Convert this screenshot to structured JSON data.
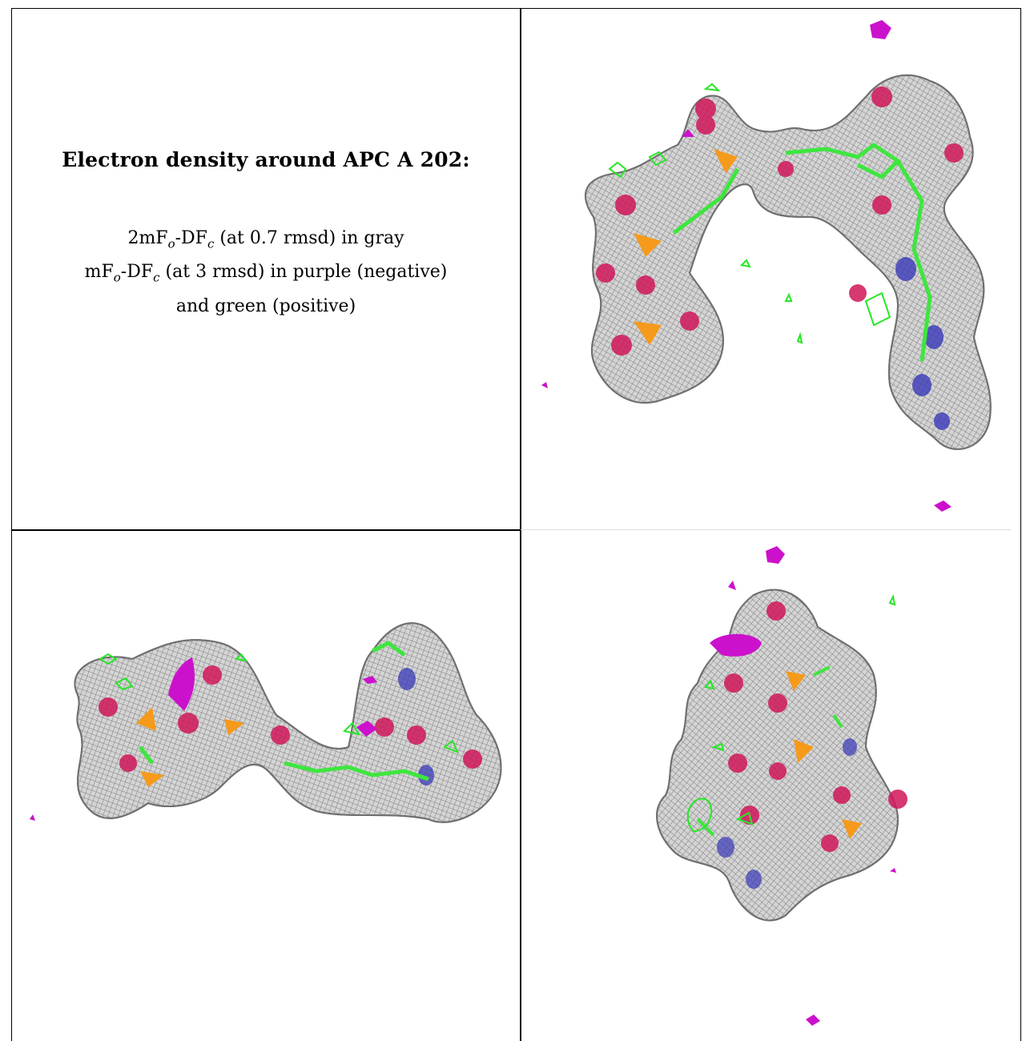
{
  "caption": {
    "title": "Electron density around APC A 202:",
    "lines": [
      {
        "pre": "2mF",
        "sub1": "o",
        "mid": "-DF",
        "sub2": "c",
        "post": " (at 0.7 rmsd) in gray"
      },
      {
        "pre": "mF",
        "sub1": "o",
        "mid": "-DF",
        "sub2": "c",
        "post": " (at 3 rmsd) in purple (negative)"
      }
    ],
    "tail": "and green (positive)"
  },
  "colors": {
    "mesh_gray": "#8c8c8c",
    "mesh_fill": "#c9c9c9",
    "oxygen": "#d0165a",
    "phosphorus": "#f59a1a",
    "carbon": "#3ee63e",
    "nitrogen": "#3838b8",
    "positive": "#27e627",
    "negative": "#cc11cc"
  },
  "panels": [
    {
      "name": "view-top-right"
    },
    {
      "name": "view-bottom-left"
    },
    {
      "name": "view-bottom-right"
    }
  ]
}
